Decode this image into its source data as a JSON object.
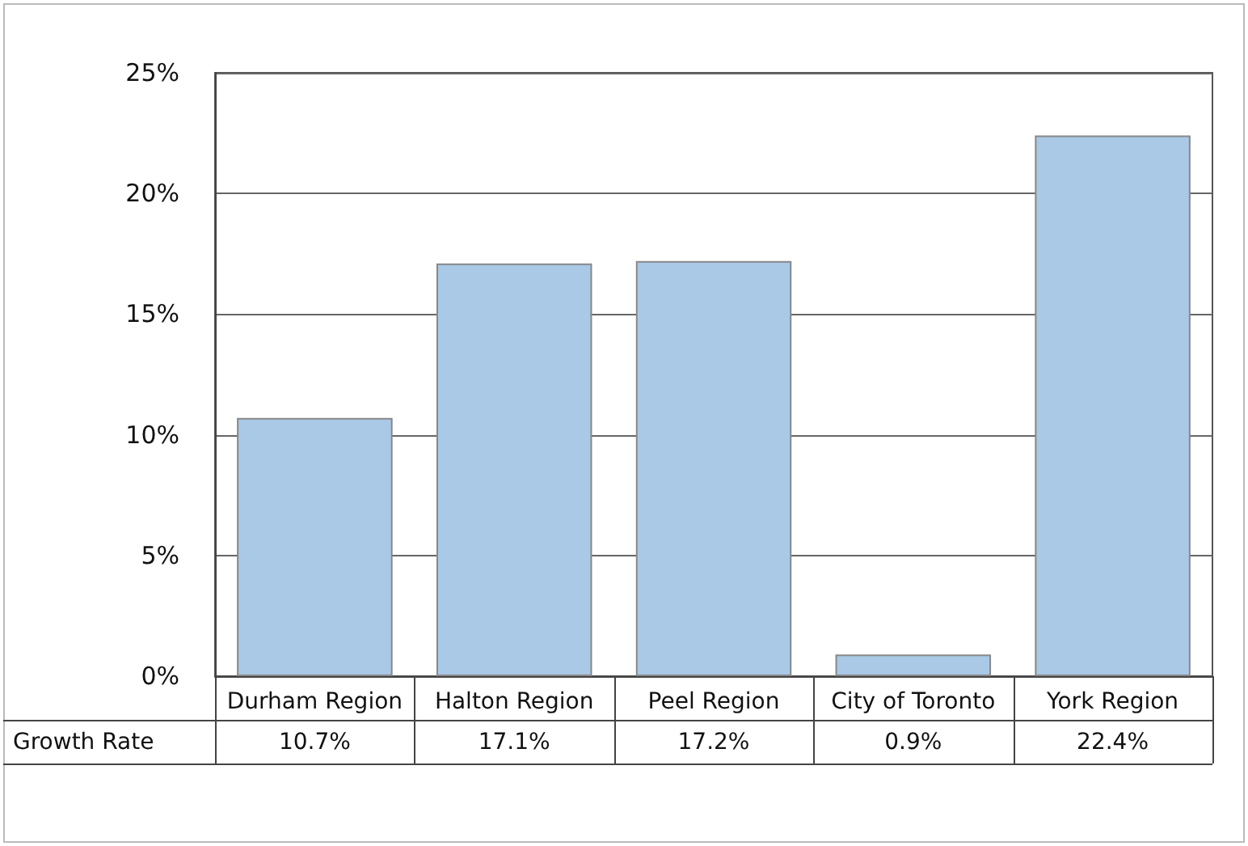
{
  "chart_data": {
    "type": "bar",
    "categories": [
      "Durham Region",
      "Halton Region",
      "Peel Region",
      "City of Toronto",
      "York Region"
    ],
    "series": [
      {
        "name": "Growth Rate",
        "color": "#a9c9e6",
        "values": [
          10.7,
          17.1,
          17.2,
          0.9,
          22.4
        ],
        "value_labels": [
          "10.7%",
          "17.1%",
          "17.2%",
          "0.9%",
          "22.4%"
        ]
      }
    ],
    "ylim": [
      0,
      25
    ],
    "yticks": [
      {
        "value": 0,
        "label": "0%"
      },
      {
        "value": 5,
        "label": "5%"
      },
      {
        "value": 10,
        "label": "10%"
      },
      {
        "value": 15,
        "label": "15%"
      },
      {
        "value": 20,
        "label": "20%"
      },
      {
        "value": 25,
        "label": "25%"
      }
    ],
    "grid": "y",
    "legend": false
  }
}
